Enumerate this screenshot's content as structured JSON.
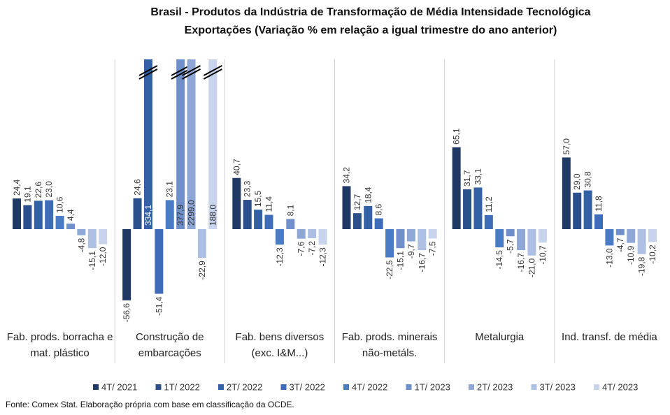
{
  "chart_data": {
    "type": "bar",
    "title": "Brasil - Produtos da Indústria de Transformação de Média Intensidade Tecnológica",
    "subtitle": "Exportações (Variação % em relação a igual trimestre do ano anterior)",
    "categories": [
      "Fab. prods. borracha e mat. plástico",
      "Construção de embarcações",
      "Fab. bens diversos (exc. I&M...)",
      "Fab. prods. minerais não-metáls.",
      "Metalurgia",
      "Ind. transf. de média"
    ],
    "ylim": [
      -70,
      135
    ],
    "series": [
      {
        "name": "4T/ 2021",
        "color": "#203864",
        "values": [
          24.4,
          -56.6,
          40.7,
          34.2,
          65.1,
          57.0
        ],
        "value_labels": [
          "24,4",
          "-56,6",
          "40,7",
          "34,2",
          "65,1",
          "57,0"
        ]
      },
      {
        "name": "1T/ 2022",
        "color": "#2b4f8a",
        "values": [
          19.1,
          24.6,
          23.3,
          12.7,
          31.7,
          29.0
        ],
        "value_labels": [
          "19,1",
          "24,6",
          "23,3",
          "12,7",
          "31,7",
          "29,0"
        ]
      },
      {
        "name": "2T/ 2022",
        "color": "#3461a6",
        "values": [
          22.6,
          334.1,
          15.5,
          18.4,
          33.1,
          30.8
        ],
        "value_labels": [
          "22,6",
          "334,1",
          "15,5",
          "18,4",
          "33,1",
          "30,8"
        ]
      },
      {
        "name": "3T/ 2022",
        "color": "#3f6cb8",
        "values": [
          23.0,
          -51.4,
          11.4,
          8.6,
          11.2,
          11.8
        ],
        "value_labels": [
          "23,0",
          "-51,4",
          "11,4",
          "8,6",
          "11,2",
          "11,8"
        ]
      },
      {
        "name": "4T/ 2022",
        "color": "#4a7cc6",
        "values": [
          10.6,
          23.1,
          -12.3,
          -22.5,
          -14.5,
          -13.0
        ],
        "value_labels": [
          "10,6",
          "23,1",
          "-12,3",
          "-22,5",
          "-14,5",
          "-13,0"
        ]
      },
      {
        "name": "1T/ 2023",
        "color": "#6e8fca",
        "values": [
          4.4,
          377.9,
          8.1,
          -15.1,
          -5.7,
          -4.7
        ],
        "value_labels": [
          "4,4",
          "377,9",
          "8,1",
          "-15,1",
          "-5,7",
          "-4,7"
        ]
      },
      {
        "name": "2T/ 2023",
        "color": "#8ea7d6",
        "values": [
          -4.8,
          2299.0,
          -7.6,
          -9.7,
          -16.7,
          -10.9
        ],
        "value_labels": [
          "-4,8",
          "2299,0",
          "-7,6",
          "-9,7",
          "-16,7",
          "-10,9"
        ]
      },
      {
        "name": "3T/ 2023",
        "color": "#adbfe2",
        "values": [
          -15.1,
          -22.9,
          -7.2,
          -16.7,
          -21.0,
          -19.8
        ],
        "value_labels": [
          "-15,1",
          "-22,9",
          "-7,2",
          "-16,7",
          "-21,0",
          "-19,8"
        ]
      },
      {
        "name": "4T/ 2023",
        "color": "#c8d4ec",
        "values": [
          -12.0,
          188.0,
          -12.3,
          -7.5,
          -10.7,
          -10.2
        ],
        "value_labels": [
          "-12,0",
          "188,0",
          "-12,3",
          "-7,5",
          "-10,7",
          "-10,2"
        ]
      }
    ],
    "source": "Fonte: Comex Stat. Elaboração própria com base em classificação da OCDE."
  }
}
